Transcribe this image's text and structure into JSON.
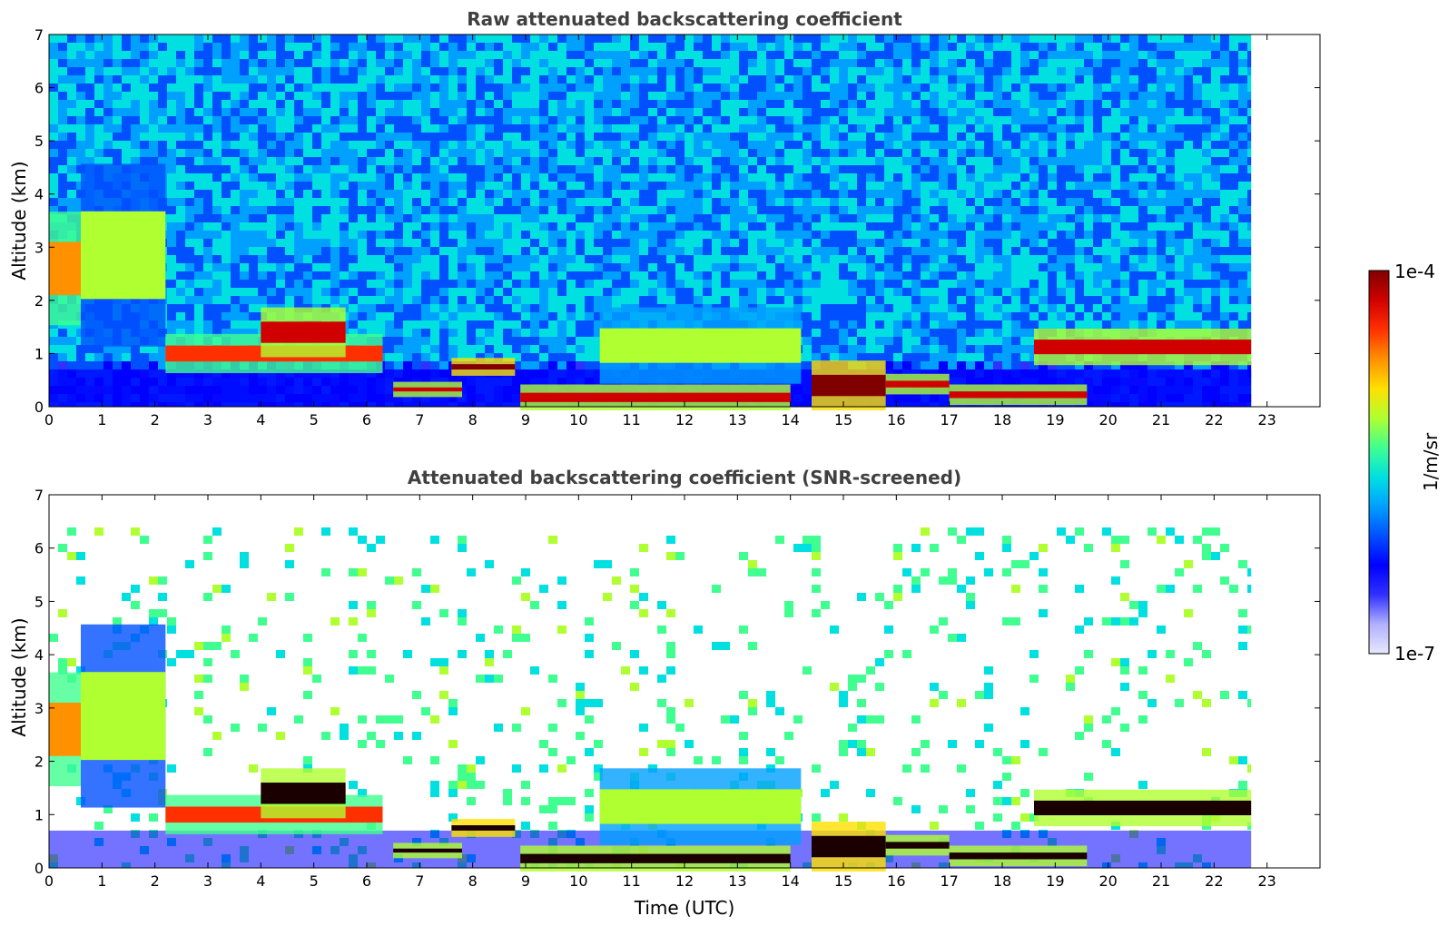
{
  "chart_data": [
    {
      "type": "heatmap",
      "title": "Raw attenuated backscattering coefficient",
      "ylabel": "Altitude (km)",
      "xlabel": "",
      "xlim": [
        0,
        24
      ],
      "ylim": [
        0,
        7
      ],
      "x_ticks": [
        0,
        1,
        2,
        3,
        4,
        5,
        6,
        7,
        8,
        9,
        10,
        11,
        12,
        13,
        14,
        15,
        16,
        17,
        18,
        19,
        20,
        21,
        22,
        23
      ],
      "y_ticks": [
        0,
        1,
        2,
        3,
        4,
        5,
        6,
        7
      ],
      "data_end_hour": 22.7,
      "layers": [
        {
          "x": [
            0.0,
            0.6
          ],
          "alt": [
            1.6,
            3.6
          ],
          "level": 0.8
        },
        {
          "x": [
            0.6,
            2.2
          ],
          "alt": [
            1.2,
            4.5
          ],
          "level": 0.6
        },
        {
          "x": [
            2.2,
            6.3
          ],
          "alt": [
            0.7,
            1.3
          ],
          "level": 0.85
        },
        {
          "x": [
            4.0,
            5.6
          ],
          "alt": [
            1.0,
            1.8
          ],
          "level": 0.9
        },
        {
          "x": [
            6.5,
            7.8
          ],
          "alt": [
            0.25,
            0.4
          ],
          "level": 0.95
        },
        {
          "x": [
            7.6,
            8.8
          ],
          "alt": [
            0.65,
            0.85
          ],
          "level": 1.0
        },
        {
          "x": [
            8.9,
            14.0
          ],
          "alt": [
            0.0,
            0.35
          ],
          "level": 0.9
        },
        {
          "x": [
            10.4,
            14.2
          ],
          "alt": [
            0.5,
            1.8
          ],
          "level": 0.65
        },
        {
          "x": [
            14.4,
            15.8
          ],
          "alt": [
            0.0,
            0.8
          ],
          "level": 1.0
        },
        {
          "x": [
            15.8,
            17.0
          ],
          "alt": [
            0.3,
            0.55
          ],
          "level": 0.9
        },
        {
          "x": [
            17.0,
            19.6
          ],
          "alt": [
            0.1,
            0.35
          ],
          "level": 0.9
        },
        {
          "x": [
            18.6,
            22.7
          ],
          "alt": [
            0.85,
            1.4
          ],
          "level": 0.9
        }
      ]
    },
    {
      "type": "heatmap",
      "title": "Attenuated backscattering coefficient (SNR-screened)",
      "ylabel": "Altitude (km)",
      "xlabel": "Time (UTC)",
      "xlim": [
        0,
        24
      ],
      "ylim": [
        0,
        7
      ],
      "x_ticks": [
        0,
        1,
        2,
        3,
        4,
        5,
        6,
        7,
        8,
        9,
        10,
        11,
        12,
        13,
        14,
        15,
        16,
        17,
        18,
        19,
        20,
        21,
        22,
        23
      ],
      "y_ticks": [
        0,
        1,
        2,
        3,
        4,
        5,
        6,
        7
      ],
      "data_end_hour": 22.7,
      "layers": [
        {
          "x": [
            0.0,
            0.6
          ],
          "alt": [
            1.6,
            3.6
          ],
          "level": 0.8
        },
        {
          "x": [
            0.6,
            2.2
          ],
          "alt": [
            1.2,
            4.5
          ],
          "level": 0.6
        },
        {
          "x": [
            2.2,
            6.3
          ],
          "alt": [
            0.7,
            1.3
          ],
          "level": 0.85
        },
        {
          "x": [
            4.0,
            5.6
          ],
          "alt": [
            1.0,
            1.8
          ],
          "level": 0.9
        },
        {
          "x": [
            6.5,
            7.8
          ],
          "alt": [
            0.25,
            0.4
          ],
          "level": 0.95
        },
        {
          "x": [
            7.6,
            8.8
          ],
          "alt": [
            0.65,
            0.85
          ],
          "level": 1.0
        },
        {
          "x": [
            8.9,
            14.0
          ],
          "alt": [
            0.0,
            0.35
          ],
          "level": 0.9
        },
        {
          "x": [
            10.4,
            14.2
          ],
          "alt": [
            0.5,
            1.8
          ],
          "level": 0.65
        },
        {
          "x": [
            14.4,
            15.8
          ],
          "alt": [
            0.0,
            0.8
          ],
          "level": 1.0
        },
        {
          "x": [
            15.8,
            17.0
          ],
          "alt": [
            0.3,
            0.55
          ],
          "level": 0.9
        },
        {
          "x": [
            17.0,
            19.6
          ],
          "alt": [
            0.1,
            0.35
          ],
          "level": 0.9
        },
        {
          "x": [
            18.6,
            22.7
          ],
          "alt": [
            0.85,
            1.4
          ],
          "level": 0.9
        }
      ]
    }
  ],
  "colorbar": {
    "max_label": "1e-4",
    "min_label": "1e-7",
    "unit_label": "1/m/sr",
    "colors": [
      "#e8e8ff",
      "#b0b0ff",
      "#3030ff",
      "#0000ff",
      "#0050ff",
      "#00a0ff",
      "#00e0e0",
      "#40ff90",
      "#b0ff30",
      "#ffe000",
      "#ff9000",
      "#ff3000",
      "#d00000",
      "#800000"
    ]
  }
}
